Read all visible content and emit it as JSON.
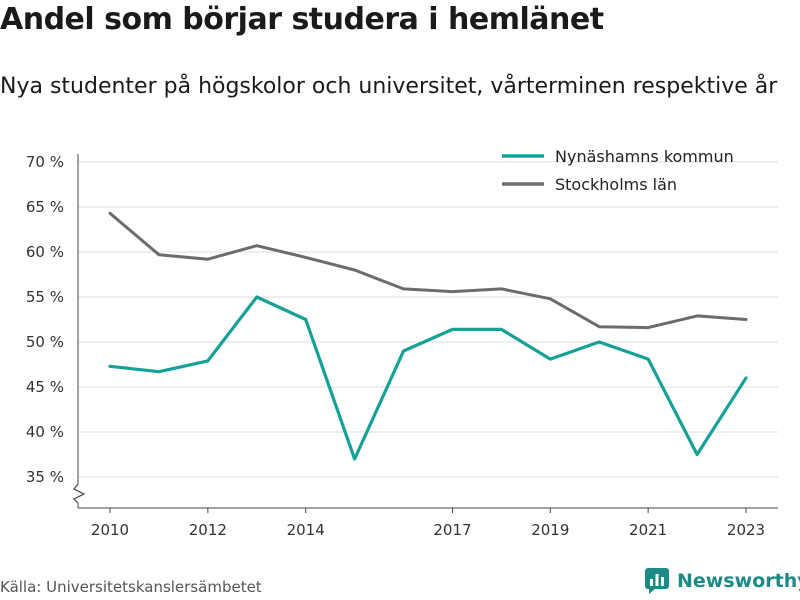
{
  "chart_data": {
    "type": "line",
    "title": "Andel som börjar studera i hemlänet",
    "subtitle": "Nya studenter på högskolor och universitet, vårterminen respektive år",
    "x": [
      2010,
      2011,
      2012,
      2013,
      2014,
      2015,
      2016,
      2017,
      2018,
      2019,
      2020,
      2021,
      2022,
      2023
    ],
    "x_tick_labels": [
      "2010",
      "2012",
      "2014",
      "2017",
      "2019",
      "2021",
      "2023"
    ],
    "y_tick_labels": [
      "35 %",
      "40 %",
      "45 %",
      "50 %",
      "55 %",
      "60 %",
      "65 %",
      "70 %"
    ],
    "ylim": [
      35,
      70
    ],
    "y_axis_break": true,
    "grid": "horizontal",
    "legend_position": "top-right",
    "series": [
      {
        "name": "Nynäshamns kommun",
        "color": "#14a198",
        "values": [
          47.3,
          46.7,
          47.9,
          55.0,
          52.5,
          37.0,
          49.0,
          51.4,
          51.4,
          48.1,
          50.0,
          48.1,
          37.5,
          46.0
        ]
      },
      {
        "name": "Stockholms län",
        "color": "#6b6b70",
        "values": [
          64.3,
          59.7,
          59.2,
          60.7,
          59.4,
          58.0,
          55.9,
          55.6,
          55.9,
          54.8,
          51.7,
          51.6,
          52.9,
          52.5
        ]
      }
    ]
  },
  "footer": {
    "source": "Källa: Universitetskanslersämbetet",
    "brand": "Newsworthy",
    "brand_icon": "bar-chart-logo-icon",
    "brand_color": "#1d8a86"
  }
}
